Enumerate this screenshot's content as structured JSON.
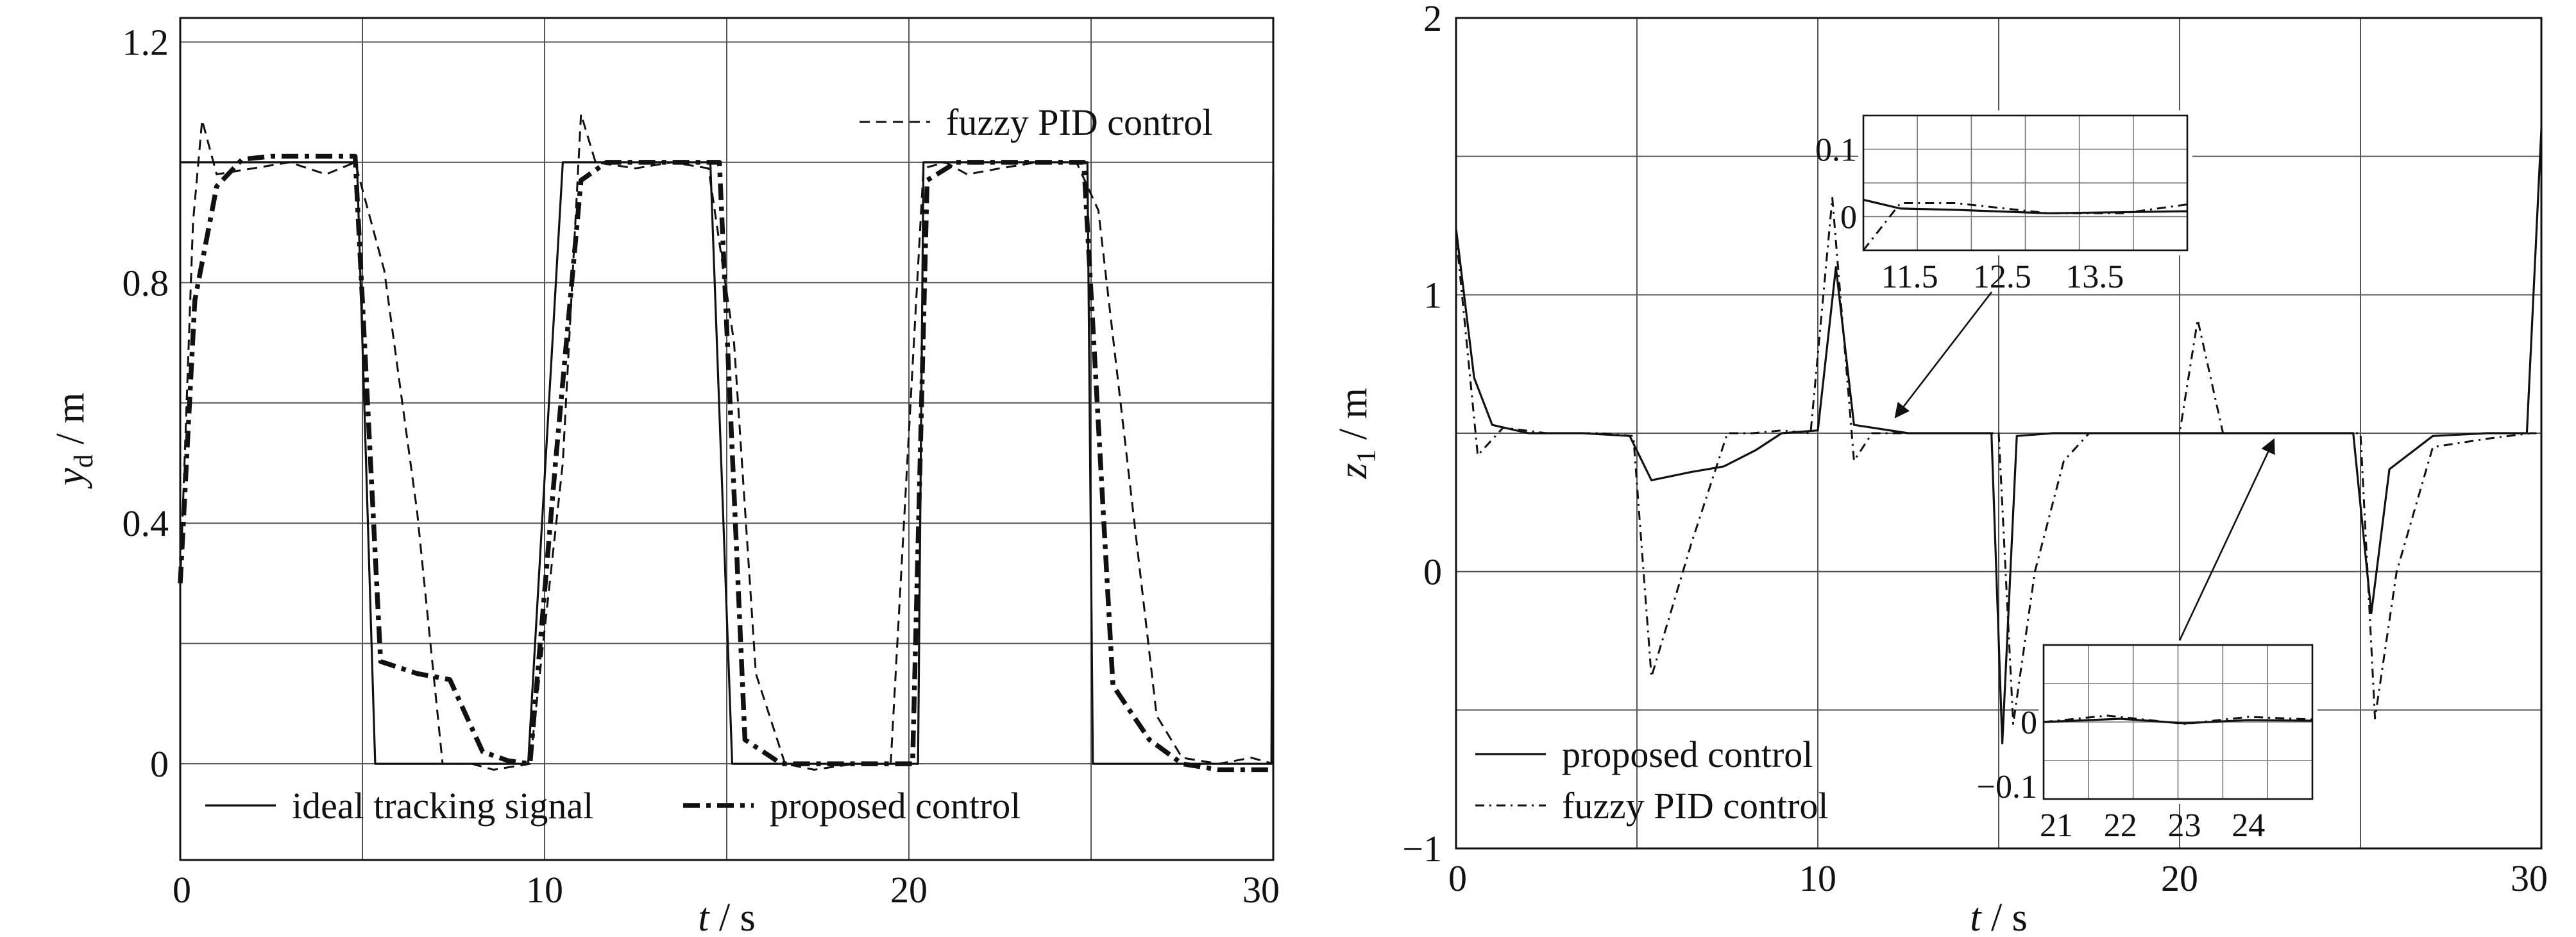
{
  "chart_data": [
    {
      "type": "line",
      "title": "",
      "xlabel": {
        "var": "t",
        "unit": "s"
      },
      "ylabel": {
        "var": "y",
        "sub": "d",
        "unit": "m"
      },
      "xlim": [
        0,
        30
      ],
      "ylim": [
        -0.16,
        1.24
      ],
      "xticks": [
        0,
        10,
        20,
        30
      ],
      "yticks": [
        0,
        0.4,
        0.8,
        1.2
      ],
      "xtick_labels": [
        "0",
        "10",
        "20",
        "30"
      ],
      "ytick_labels": [
        "0",
        "0.4",
        "0.8",
        "1.2"
      ],
      "grid": true,
      "legend": [
        {
          "series": 0,
          "label": "ideal tracking signal",
          "position": "bottom-left"
        },
        {
          "series": 1,
          "label": "proposed control",
          "position": "bottom-right"
        },
        {
          "series": 2,
          "label": "fuzzy PID control",
          "position": "top-right"
        }
      ],
      "series": [
        {
          "name": "ideal tracking signal",
          "style": "solid",
          "x": [
            0,
            0.01,
            4.85,
            5.35,
            9.55,
            10.5,
            14.55,
            15.15,
            20.25,
            20.4,
            24.9,
            25.05,
            29.95,
            30.0
          ],
          "y": [
            1.0,
            1.0,
            1.0,
            0.0,
            0.0,
            1.0,
            1.0,
            0.0,
            0.0,
            1.0,
            1.0,
            0.0,
            0.0,
            0.98
          ]
        },
        {
          "name": "proposed control",
          "style": "bold-dashdot",
          "x": [
            0,
            0.4,
            1.0,
            1.7,
            2.5,
            3.5,
            4.8,
            5.5,
            6.5,
            7.4,
            8.3,
            9.0,
            9.6,
            10.3,
            11.0,
            11.7,
            12.5,
            13.5,
            14.8,
            15.5,
            16.5,
            17.5,
            18.5,
            19.5,
            20.1,
            20.5,
            21.3,
            22.3,
            23.5,
            24.8,
            25.6,
            26.6,
            27.5,
            28.5,
            29.5,
            30.0
          ],
          "y": [
            0.3,
            0.77,
            0.96,
            1.005,
            1.01,
            1.01,
            1.01,
            0.17,
            0.15,
            0.14,
            0.02,
            0.005,
            0.0,
            0.5,
            0.97,
            1.0,
            1.0,
            1.0,
            1.0,
            0.04,
            0.0,
            0.0,
            0.0,
            0.0,
            0.0,
            0.97,
            1.0,
            1.0,
            1.0,
            1.0,
            0.13,
            0.04,
            0.0,
            -0.01,
            -0.01,
            -0.01
          ]
        },
        {
          "name": "fuzzy PID control",
          "style": "dashed",
          "x": [
            0,
            0.35,
            0.6,
            1.0,
            2.0,
            3.0,
            4.0,
            4.8,
            5.6,
            6.5,
            7.2,
            8.0,
            8.6,
            9.6,
            10.5,
            11.0,
            11.4,
            12.5,
            13.5,
            14.5,
            15.2,
            15.8,
            16.6,
            17.4,
            18.5,
            19.5,
            20.4,
            21.0,
            21.6,
            22.5,
            23.5,
            24.6,
            25.2,
            26.0,
            26.8,
            27.5,
            28.5,
            29.4,
            30.0
          ],
          "y": [
            0.3,
            0.9,
            1.07,
            0.98,
            0.99,
            1.0,
            0.98,
            1.0,
            0.82,
            0.42,
            0.0,
            0.0,
            -0.01,
            0.0,
            0.5,
            1.08,
            1.0,
            0.99,
            1.0,
            0.99,
            0.7,
            0.15,
            0.0,
            -0.01,
            0.0,
            0.0,
            0.99,
            1.0,
            0.98,
            0.99,
            1.0,
            1.0,
            0.92,
            0.5,
            0.08,
            0.01,
            0.0,
            0.01,
            0.0
          ]
        }
      ]
    },
    {
      "type": "line",
      "title": "",
      "xlabel": {
        "var": "t",
        "unit": "s"
      },
      "ylabel": {
        "var": "z",
        "sub": "1",
        "unit": "m"
      },
      "xlim": [
        0,
        30
      ],
      "ylim": [
        -1,
        2
      ],
      "xticks": [
        0,
        10,
        20,
        30
      ],
      "yticks": [
        -1,
        0,
        1,
        2
      ],
      "xtick_labels": [
        "0",
        "10",
        "20",
        "30"
      ],
      "ytick_labels": [
        "−1",
        "0",
        "1",
        "2"
      ],
      "grid": true,
      "legend": [
        {
          "series": 0,
          "label": "proposed control",
          "position": "bottom-left"
        },
        {
          "series": 1,
          "label": "fuzzy PID control",
          "position": "bottom-left"
        }
      ],
      "series": [
        {
          "name": "proposed control",
          "style": "solid",
          "x": [
            0,
            0.5,
            1.0,
            2.0,
            3.5,
            4.8,
            5.4,
            6.5,
            7.4,
            8.3,
            9.0,
            10.0,
            10.5,
            11.0,
            12.5,
            13.8,
            14.8,
            15.1,
            15.5,
            16.5,
            18.0,
            19.5,
            20.5,
            21.5,
            23.0,
            24.8,
            25.3,
            25.8,
            27.0,
            28.5,
            29.6,
            30.0
          ],
          "y": [
            1.24,
            0.7,
            0.53,
            0.5,
            0.5,
            0.49,
            0.33,
            0.36,
            0.38,
            0.44,
            0.5,
            0.51,
            1.1,
            0.53,
            0.5,
            0.5,
            0.5,
            -0.62,
            0.49,
            0.5,
            0.5,
            0.5,
            0.5,
            0.5,
            0.5,
            0.5,
            -0.15,
            0.37,
            0.49,
            0.5,
            0.5,
            1.6
          ]
        },
        {
          "name": "fuzzy PID control",
          "style": "dashdot",
          "x": [
            0,
            0.6,
            1.3,
            2.5,
            4.0,
            4.9,
            5.4,
            6.5,
            7.5,
            8.2,
            9.0,
            9.8,
            10.4,
            11.0,
            11.5,
            12.5,
            14.0,
            15.0,
            15.4,
            16.0,
            16.8,
            17.5,
            19.0,
            20.0,
            20.5,
            21.2,
            22.5,
            24.0,
            25.0,
            25.4,
            26.0,
            27.0,
            28.5,
            29.7,
            30.0
          ],
          "y": [
            1.22,
            0.42,
            0.52,
            0.5,
            0.5,
            0.49,
            -0.38,
            0.1,
            0.5,
            0.5,
            0.51,
            0.5,
            1.35,
            0.4,
            0.5,
            0.5,
            0.5,
            0.5,
            -0.55,
            0.0,
            0.4,
            0.5,
            0.5,
            0.5,
            0.91,
            0.5,
            0.5,
            0.5,
            0.5,
            -0.53,
            0.0,
            0.45,
            0.48,
            0.5,
            0.5
          ]
        }
      ],
      "insets": [
        {
          "xlim": [
            11,
            14.5
          ],
          "ylim": [
            -0.05,
            0.15
          ],
          "xticks": [
            11.5,
            12.5,
            13.5
          ],
          "yticks": [
            0,
            0.1
          ],
          "xtick_labels": [
            "11.5",
            "12.5",
            "13.5"
          ],
          "ytick_labels": [
            "0",
            "0.1"
          ],
          "series": [
            {
              "name": "proposed control",
              "x": [
                11.0,
                11.4,
                12.0,
                13.0,
                14.5
              ],
              "y": [
                0.025,
                0.012,
                0.01,
                0.005,
                0.008
              ]
            },
            {
              "name": "fuzzy PID control",
              "x": [
                11.0,
                11.4,
                12.0,
                13.0,
                13.8,
                14.5
              ],
              "y": [
                -0.05,
                0.02,
                0.02,
                0.005,
                0.005,
                0.018
              ]
            }
          ]
        },
        {
          "xlim": [
            20.8,
            25
          ],
          "ylim": [
            -0.12,
            0.12
          ],
          "xticks": [
            21,
            22,
            23,
            24
          ],
          "yticks": [
            -0.1,
            0
          ],
          "xtick_labels": [
            "21",
            "22",
            "23",
            "24"
          ],
          "ytick_labels": [
            "−0.1",
            "0"
          ],
          "series": [
            {
              "name": "proposed control",
              "x": [
                20.8,
                22,
                23,
                24,
                25
              ],
              "y": [
                0.0,
                0.005,
                -0.002,
                0.003,
                0.002
              ]
            },
            {
              "name": "fuzzy PID control",
              "x": [
                20.8,
                21.8,
                23,
                24,
                25
              ],
              "y": [
                0.0,
                0.01,
                -0.003,
                0.008,
                0.004
              ]
            }
          ]
        }
      ]
    }
  ]
}
